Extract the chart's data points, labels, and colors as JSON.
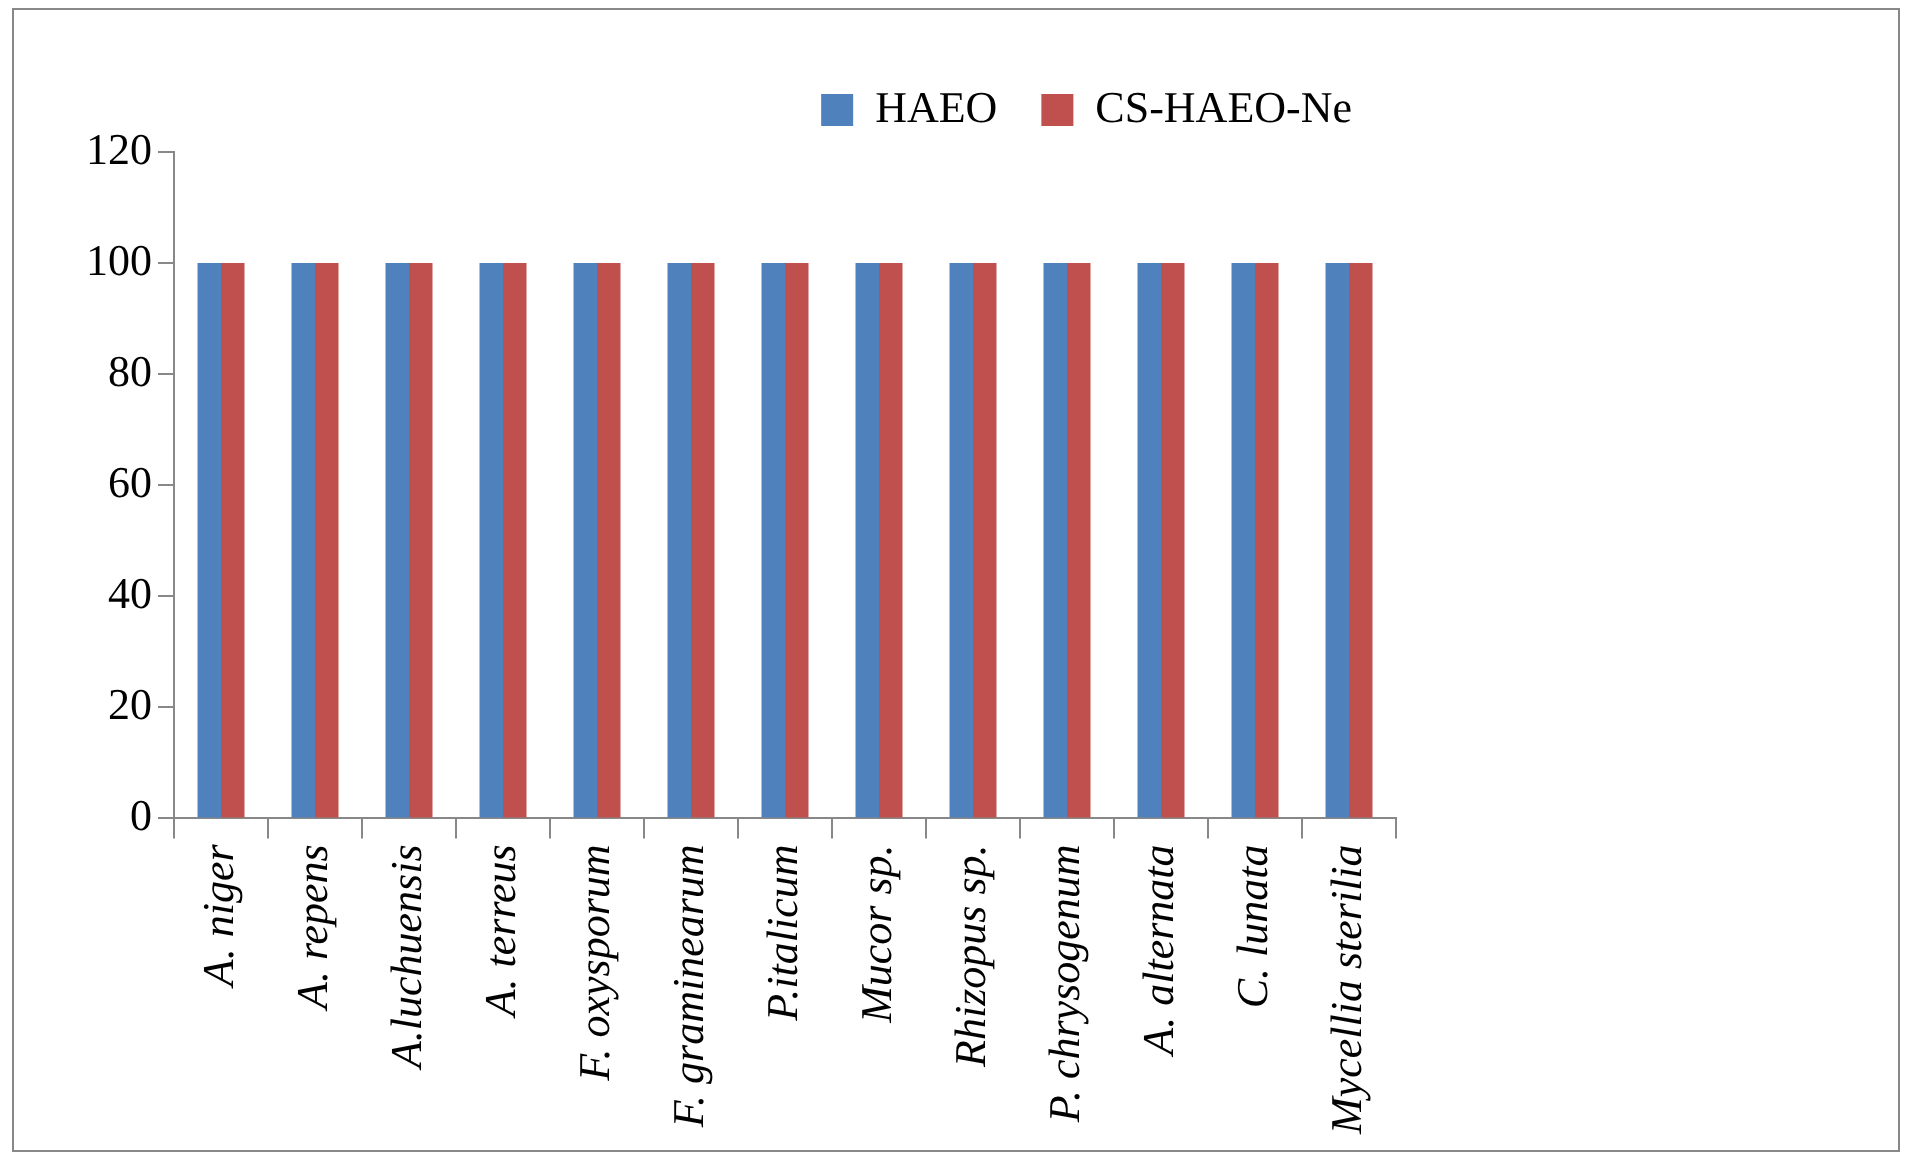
{
  "chart_data": {
    "type": "bar",
    "categories": [
      "A. niger",
      "A. repens",
      "A.luchuensis",
      "A. terreus",
      "F. oxysporum",
      "F. graminearum",
      "P.italicum",
      "Mucor sp.",
      "Rhizopus sp.",
      "P. chrysogenum",
      "A. alternata",
      "C. lunata",
      "Mycellia sterilia"
    ],
    "series": [
      {
        "name": "HAEO",
        "color": "#4f81bd",
        "values": [
          100,
          100,
          100,
          100,
          100,
          100,
          100,
          100,
          100,
          100,
          100,
          100,
          100
        ]
      },
      {
        "name": "CS-HAEO-Ne",
        "color": "#c0504d",
        "values": [
          100,
          100,
          100,
          100,
          100,
          100,
          100,
          100,
          100,
          100,
          100,
          100,
          100
        ]
      }
    ],
    "ylim": [
      0,
      120
    ],
    "yticks": [
      0,
      20,
      40,
      60,
      80,
      100,
      120
    ],
    "grid": false,
    "legend": "top right"
  }
}
